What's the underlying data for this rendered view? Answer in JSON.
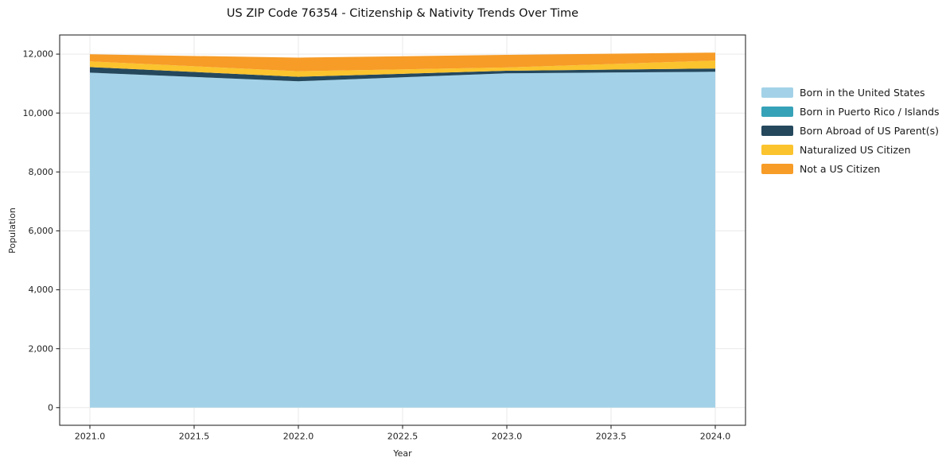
{
  "chart_data": {
    "type": "area",
    "stacked": true,
    "title": "US ZIP Code 76354 - Citizenship & Nativity Trends Over Time",
    "xlabel": "Year",
    "ylabel": "Population",
    "x": [
      2021,
      2022,
      2023,
      2024
    ],
    "series": [
      {
        "name": "Born in the United States",
        "color": "#A3D2E8",
        "values": [
          11370,
          11080,
          11350,
          11400
        ]
      },
      {
        "name": "Born in Puerto Rico / Islands",
        "color": "#36A2B8",
        "values": [
          0,
          0,
          0,
          0
        ]
      },
      {
        "name": "Born Abroad of US Parent(s)",
        "color": "#25485D",
        "values": [
          190,
          150,
          85,
          110
        ]
      },
      {
        "name": "Naturalized US Citizen",
        "color": "#FBC32D",
        "values": [
          195,
          190,
          110,
          270
        ]
      },
      {
        "name": "Not a US Citizen",
        "color": "#F79C27",
        "values": [
          240,
          460,
          430,
          270
        ]
      }
    ],
    "totals": [
      11995,
      11880,
      11975,
      12050
    ],
    "xticks": {
      "values": [
        2021.0,
        2021.5,
        2022.0,
        2022.5,
        2023.0,
        2023.5,
        2024.0
      ],
      "labels": [
        "2021.0",
        "2021.5",
        "2022.0",
        "2022.5",
        "2023.0",
        "2023.5",
        "2024.0"
      ]
    },
    "yticks": {
      "values": [
        0,
        2000,
        4000,
        6000,
        8000,
        10000,
        12000
      ],
      "labels": [
        "0",
        "2,000",
        "4,000",
        "6,000",
        "8,000",
        "10,000",
        "12,000"
      ]
    },
    "xlim": [
      2020.855,
      2024.145
    ],
    "ylim": [
      -600,
      12650
    ],
    "grid": true,
    "legend_position": "outside-right"
  },
  "colors": {
    "spine": "#2b2b2b",
    "grid": "#e9e9e9",
    "tick_text": "#1f1f1f",
    "background": "#ffffff"
  }
}
